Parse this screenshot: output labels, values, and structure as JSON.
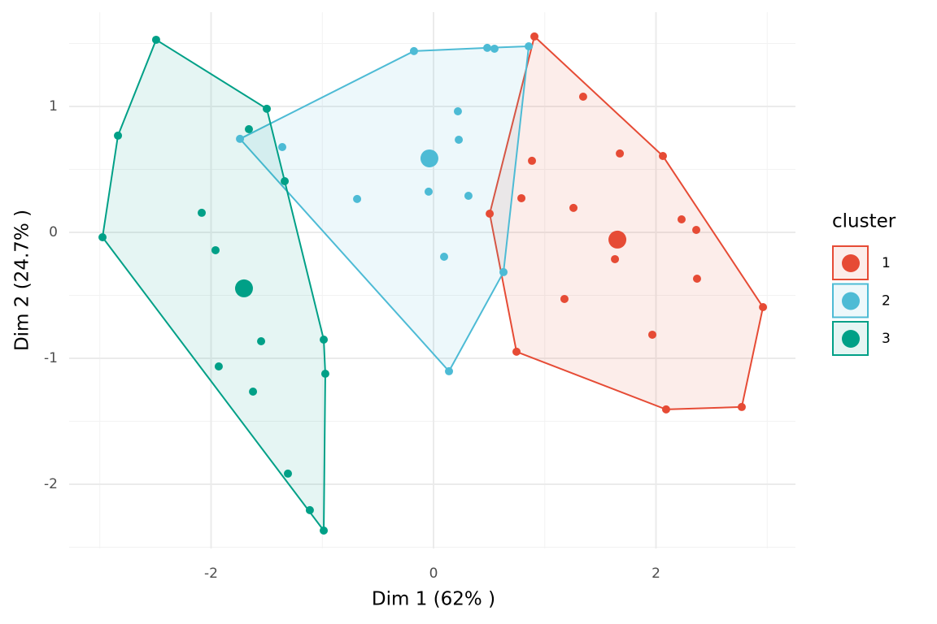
{
  "chart_data": {
    "type": "scatter",
    "xlabel": "Dim 1 (62% )",
    "ylabel": "Dim 2 (24.7% )",
    "legend_title": "cluster",
    "legend_position": "right",
    "grid": true,
    "xlim": [
      -3.276,
      3.254
    ],
    "ylim": [
      -2.51,
      1.748
    ],
    "xticks": [
      -2,
      0,
      2
    ],
    "yticks": [
      -2,
      -1,
      0,
      1
    ],
    "xminor": [
      -3,
      -1,
      1,
      3
    ],
    "yminor": [
      -2.5,
      -1.5,
      -0.5,
      0.5,
      1.5
    ],
    "series": [
      {
        "name": "1",
        "color": "#E64B35",
        "x": [
          0.907,
          1.345,
          1.675,
          2.062,
          0.885,
          0.79,
          1.258,
          0.505,
          2.23,
          2.362,
          1.631,
          2.369,
          1.177,
          2.962,
          1.967,
          0.746,
          2.091,
          2.771
        ],
        "y": [
          1.555,
          1.077,
          0.626,
          0.606,
          0.568,
          0.271,
          0.194,
          0.148,
          0.103,
          0.019,
          -0.213,
          -0.368,
          -0.529,
          -0.594,
          -0.813,
          -0.948,
          -1.406,
          -1.387
        ],
        "center": [
          1.653,
          -0.058
        ]
      },
      {
        "name": "2",
        "color": "#4DBBD5",
        "x": [
          -0.176,
          0.483,
          0.548,
          0.856,
          0.219,
          0.227,
          -1.74,
          -1.36,
          -0.687,
          -0.044,
          0.314,
          0.095,
          0.629,
          0.139
        ],
        "y": [
          1.439,
          1.465,
          1.458,
          1.477,
          0.961,
          0.735,
          0.742,
          0.677,
          0.265,
          0.323,
          0.29,
          -0.194,
          -0.316,
          -1.103
        ],
        "center": [
          -0.037,
          0.587
        ]
      },
      {
        "name": "3",
        "color": "#00A087",
        "x": [
          -2.494,
          -1.499,
          -2.837,
          -1.66,
          -1.338,
          -2.084,
          -2.976,
          -1.96,
          -0.987,
          -1.55,
          -1.931,
          -0.973,
          -1.623,
          -1.309,
          -1.112,
          -0.987
        ],
        "y": [
          1.529,
          0.981,
          0.768,
          0.819,
          0.406,
          0.155,
          -0.039,
          -0.142,
          -0.852,
          -0.865,
          -1.065,
          -1.123,
          -1.265,
          -1.916,
          -2.206,
          -2.368
        ],
        "center": [
          -1.704,
          -0.445
        ]
      }
    ]
  }
}
